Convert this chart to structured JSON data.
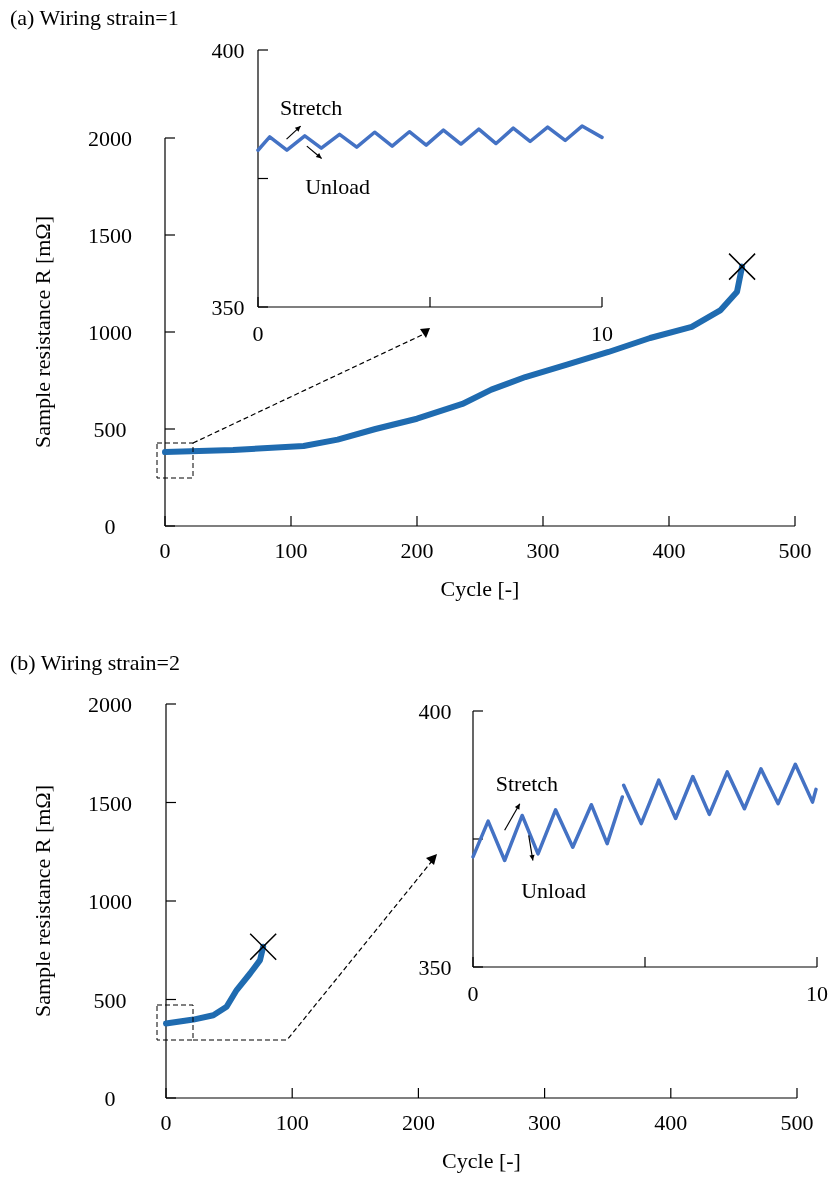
{
  "chart_data": [
    {
      "type": "line",
      "title": "(a) Wiring strain=1",
      "xlabel": "Cycle  [-]",
      "ylabel": "Sample resistance R [mΩ]",
      "xlim": [
        0,
        500
      ],
      "xticks": [
        0,
        100,
        200,
        300,
        400,
        500
      ],
      "ylim": [
        0,
        2000
      ],
      "yticks": [
        0,
        500,
        1000,
        1500,
        2000
      ],
      "series": [
        {
          "color": "#1f6bb0",
          "x": [
            0,
            54,
            110,
            137,
            167,
            200,
            236,
            259,
            286,
            319,
            352,
            385,
            418,
            441,
            454,
            458
          ],
          "values": [
            381,
            392,
            412,
            445,
            500,
            553,
            629,
            703,
            768,
            832,
            897,
            969,
            1026,
            1113,
            1208,
            1337
          ]
        },
        {
          "type": "scatter",
          "marker": "cross",
          "color": "#000000",
          "x": [
            458
          ],
          "values": [
            1337
          ]
        }
      ]
    },
    {
      "type": "line",
      "xlim": [
        0,
        10
      ],
      "xticks": [
        0,
        {
          "value": 5,
          "label": null
        },
        10
      ],
      "ylim": [
        350,
        400
      ],
      "yticks": [
        350,
        {
          "value": 375,
          "label": null
        },
        400
      ],
      "annotations": [
        "Stretch",
        "Unload"
      ],
      "series": [
        {
          "color": "#4472c4",
          "x": [
            0,
            0.34,
            0.84,
            1.36,
            1.84,
            2.37,
            2.87,
            3.39,
            3.9,
            4.4,
            4.89,
            5.39,
            5.9,
            6.42,
            6.92,
            7.42,
            7.91,
            8.42,
            8.93,
            9.42,
            10
          ],
          "values": [
            380.5,
            383.1,
            380.5,
            383.3,
            380.9,
            383.6,
            381.1,
            384.0,
            381.3,
            384.1,
            381.5,
            384.4,
            381.7,
            384.6,
            381.8,
            384.8,
            382.2,
            385.0,
            382.4,
            385.2,
            383.0
          ]
        }
      ]
    },
    {
      "type": "line",
      "title": "(b) Wiring strain=2",
      "xlabel": "Cycle  [-]",
      "ylabel": "Sample resistance R [mΩ]",
      "xlim": [
        0,
        500
      ],
      "xticks": [
        0,
        100,
        200,
        300,
        400,
        500
      ],
      "ylim": [
        0,
        2000
      ],
      "yticks": [
        0,
        500,
        1000,
        1500,
        2000
      ],
      "series": [
        {
          "color": "#1f6bb0",
          "x": [
            0,
            21.7,
            37.5,
            48,
            56,
            66.6,
            74.5,
            77
          ],
          "values": [
            378,
            398,
            420,
            463,
            548,
            632,
            700,
            768
          ]
        },
        {
          "type": "scatter",
          "marker": "cross",
          "color": "#000000",
          "x": [
            77
          ],
          "values": [
            768
          ]
        }
      ]
    },
    {
      "type": "line",
      "xlim": [
        0,
        10
      ],
      "xticks": [
        0,
        {
          "value": 5,
          "label": null
        },
        10
      ],
      "ylim": [
        350,
        400
      ],
      "yticks": [
        350,
        {
          "value": 375,
          "label": null
        },
        400
      ],
      "annotations": [
        "Stretch",
        "Unload"
      ],
      "series": [
        {
          "color": "#4472c4",
          "x": [
            0,
            0.44,
            0.92,
            1.43,
            1.89,
            2.4,
            2.9,
            3.44,
            3.9,
            4.34,
            null,
            4.38,
            4.89,
            5.4,
            5.89,
            6.39,
            6.87,
            7.39,
            7.89,
            8.37,
            8.87,
            9.37,
            9.87,
            9.97
          ],
          "values": [
            371.5,
            378.5,
            370.8,
            379.6,
            372.1,
            380.7,
            373.4,
            381.7,
            374.1,
            383.2,
            null,
            385.5,
            378.0,
            386.5,
            379.0,
            387.2,
            379.8,
            388.1,
            380.9,
            388.7,
            381.9,
            389.6,
            382.2,
            384.7
          ]
        }
      ]
    }
  ]
}
